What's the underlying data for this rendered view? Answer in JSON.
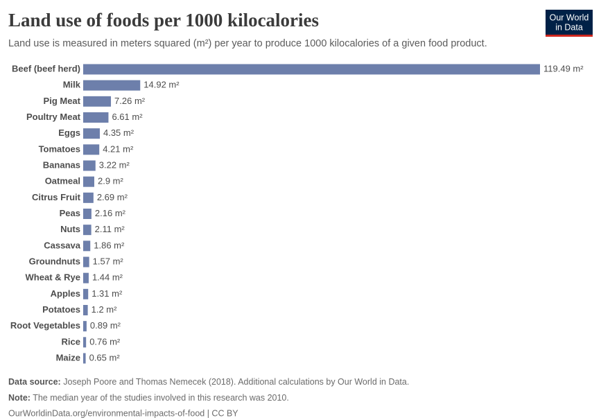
{
  "chart_data": {
    "type": "bar",
    "orientation": "horizontal",
    "title": "Land use of foods per 1000 kilocalories",
    "subtitle": "Land use is measured in meters squared (m²) per year to produce 1000 kilocalories of a given food product.",
    "categories": [
      "Beef (beef herd)",
      "Milk",
      "Pig Meat",
      "Poultry Meat",
      "Eggs",
      "Tomatoes",
      "Bananas",
      "Oatmeal",
      "Citrus Fruit",
      "Peas",
      "Nuts",
      "Cassava",
      "Groundnuts",
      "Wheat & Rye",
      "Apples",
      "Potatoes",
      "Root Vegetables",
      "Rice",
      "Maize"
    ],
    "values": [
      119.49,
      14.92,
      7.26,
      6.61,
      4.35,
      4.21,
      3.22,
      2.9,
      2.69,
      2.16,
      2.11,
      1.86,
      1.57,
      1.44,
      1.31,
      1.2,
      0.89,
      0.76,
      0.65
    ],
    "value_labels": [
      "119.49 m²",
      "14.92 m²",
      "7.26 m²",
      "6.61 m²",
      "4.35 m²",
      "4.21 m²",
      "3.22 m²",
      "2.9 m²",
      "2.69 m²",
      "2.16 m²",
      "2.11 m²",
      "1.86 m²",
      "1.57 m²",
      "1.44 m²",
      "1.31 m²",
      "1.2 m²",
      "0.89 m²",
      "0.76 m²",
      "0.65 m²"
    ],
    "color": "#6d7fab",
    "source": {
      "label": "Data source:",
      "text": "Joseph Poore and Thomas Nemecek (2018). Additional calculations by Our World in Data."
    },
    "note": {
      "label": "Note:",
      "text": "The median year of the studies involved in this research was 2010."
    },
    "url": "OurWorldinData.org/environmental-impacts-of-food | CC BY",
    "logo": [
      "Our World",
      "in Data"
    ]
  }
}
